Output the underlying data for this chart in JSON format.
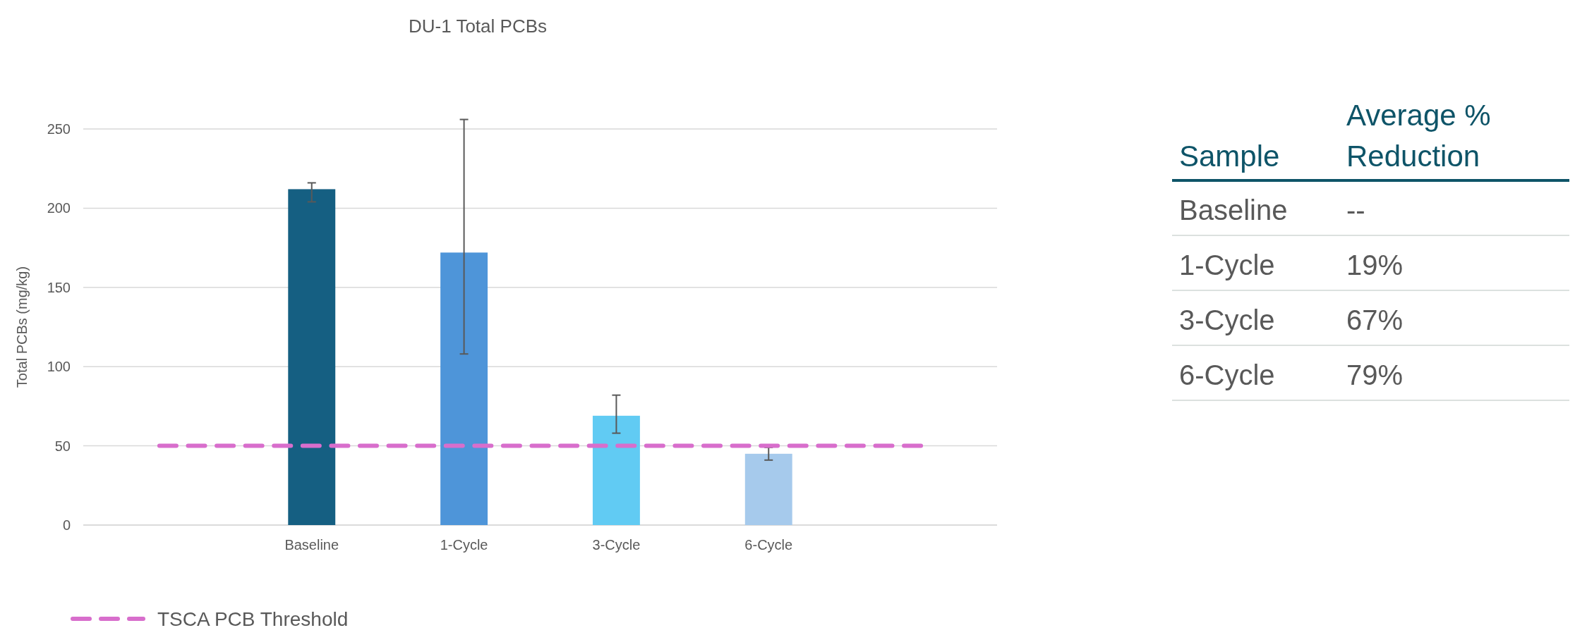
{
  "chart_data": [
    {
      "type": "bar",
      "title": "DU-1 Total PCBs",
      "ylabel": "Total PCBs (mg/kg)",
      "categories": [
        null,
        "Baseline",
        "1-Cycle",
        "3-Cycle",
        "6-Cycle",
        null
      ],
      "series": [
        {
          "type": "bar",
          "colors": [
            null,
            "#155f82",
            "#4e95d9",
            "#61cbf3",
            "#a6caec",
            null
          ],
          "values": [
            null,
            212,
            172,
            69,
            45,
            null
          ],
          "errors": [
            null,
            [
              204,
              216
            ],
            [
              108,
              256
            ],
            [
              58,
              82
            ],
            [
              41,
              49
            ],
            null
          ]
        },
        {
          "type": "line",
          "name": "TSCA PCB Threshold",
          "color": "#d86ecc",
          "line_style": "dashed",
          "values": [
            50,
            50,
            50,
            50,
            50,
            50
          ]
        }
      ],
      "ylim": [
        0,
        250
      ],
      "yticks": [
        0,
        50,
        100,
        150,
        200,
        250
      ],
      "grid": "y",
      "legend": "bottom"
    },
    {
      "type": "other",
      "xlabel": "Sample",
      "ylabel": "Average % Reduction",
      "categories": [
        "Baseline",
        "1-Cycle",
        "3-Cycle",
        "6-Cycle"
      ],
      "value_labels": [
        "--",
        "19%",
        "67%",
        "79%"
      ]
    }
  ]
}
